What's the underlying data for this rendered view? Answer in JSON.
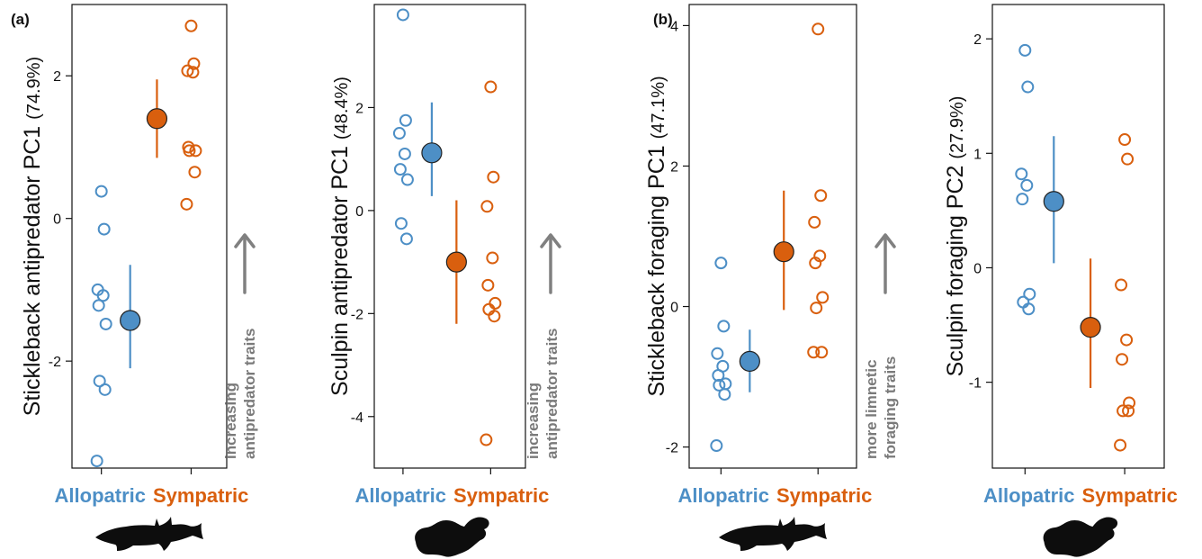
{
  "colors": {
    "allopatric": "#4d8fc6",
    "sympatric": "#d95f0e",
    "arrow": "#808080",
    "silhouette": "#0d0d0d"
  },
  "panels": [
    {
      "label": "(a)"
    },
    {
      "label": "(b)"
    }
  ],
  "chart_data": [
    {
      "type": "scatter",
      "ylabel": "Stickleback antipredator PC1",
      "ylabel_pct": "(74.9%)",
      "ylim": [
        -3.5,
        3.0
      ],
      "yticks": [
        "-2",
        "0",
        "2"
      ],
      "categories": [
        "Allopatric",
        "Sympatric"
      ],
      "silhouette": "stickleback-silhouette-icon",
      "annotation": [
        "increasing",
        "antipredator traits"
      ],
      "series": [
        {
          "name": "Allopatric",
          "points": [
            0.38,
            -0.15,
            -1.0,
            -1.08,
            -1.22,
            -1.48,
            -2.28,
            -2.4,
            -3.4
          ],
          "mean": -1.43,
          "lo": -2.1,
          "hi": -0.65
        },
        {
          "name": "Sympatric",
          "points": [
            2.7,
            2.17,
            2.07,
            2.05,
            1.0,
            0.95,
            0.95,
            0.65,
            0.2
          ],
          "mean": 1.4,
          "lo": 0.85,
          "hi": 1.95
        }
      ]
    },
    {
      "type": "scatter",
      "ylabel": "Sculpin antipredator PC1",
      "ylabel_pct": "(48.4%)",
      "ylim": [
        -5.0,
        4.0
      ],
      "yticks": [
        "-4",
        "-2",
        "0",
        "2"
      ],
      "categories": [
        "Allopatric",
        "Sympatric"
      ],
      "silhouette": "sculpin-silhouette-icon",
      "annotation": [
        "increasing",
        "antipredator traits"
      ],
      "series": [
        {
          "name": "Allopatric",
          "points": [
            3.8,
            1.75,
            1.5,
            1.1,
            0.8,
            0.6,
            -0.25,
            -0.55
          ],
          "mean": 1.12,
          "lo": 0.28,
          "hi": 2.1
        },
        {
          "name": "Sympatric",
          "points": [
            2.4,
            0.65,
            0.08,
            -0.92,
            -1.45,
            -1.8,
            -1.92,
            -2.05,
            -4.45
          ],
          "mean": -1.0,
          "lo": -2.2,
          "hi": 0.2
        }
      ]
    },
    {
      "type": "scatter",
      "ylabel": "Stickleback foraging PC1",
      "ylabel_pct": "(47.1%)",
      "ylim": [
        -2.3,
        4.3
      ],
      "yticks": [
        "-2",
        "0",
        "2",
        "4"
      ],
      "categories": [
        "Allopatric",
        "Sympatric"
      ],
      "silhouette": "stickleback-silhouette-icon",
      "annotation": [
        "more limnetic",
        "foraging traits"
      ],
      "series": [
        {
          "name": "Allopatric",
          "points": [
            0.62,
            -0.28,
            -0.67,
            -0.85,
            -0.98,
            -1.1,
            -1.12,
            -1.25,
            -1.98
          ],
          "mean": -0.78,
          "lo": -1.22,
          "hi": -0.33
        },
        {
          "name": "Sympatric",
          "points": [
            3.95,
            1.58,
            1.2,
            0.72,
            0.62,
            0.13,
            -0.02,
            -0.65,
            -0.65
          ],
          "mean": 0.78,
          "lo": -0.05,
          "hi": 1.65
        }
      ]
    },
    {
      "type": "scatter",
      "ylabel": "Sculpin foraging PC2",
      "ylabel_pct": "(27.9%)",
      "ylim": [
        -1.75,
        2.3
      ],
      "yticks": [
        "-1",
        "0",
        "1",
        "2"
      ],
      "categories": [
        "Allopatric",
        "Sympatric"
      ],
      "silhouette": "sculpin-silhouette-icon",
      "annotation": [],
      "series": [
        {
          "name": "Allopatric",
          "points": [
            1.9,
            1.58,
            0.82,
            0.72,
            0.6,
            -0.23,
            -0.3,
            -0.36
          ],
          "mean": 0.58,
          "lo": 0.04,
          "hi": 1.15
        },
        {
          "name": "Sympatric",
          "points": [
            1.12,
            0.95,
            -0.15,
            -0.63,
            -0.8,
            -1.18,
            -1.25,
            -1.25,
            -1.55
          ],
          "mean": -0.52,
          "lo": -1.05,
          "hi": 0.08
        }
      ]
    }
  ]
}
